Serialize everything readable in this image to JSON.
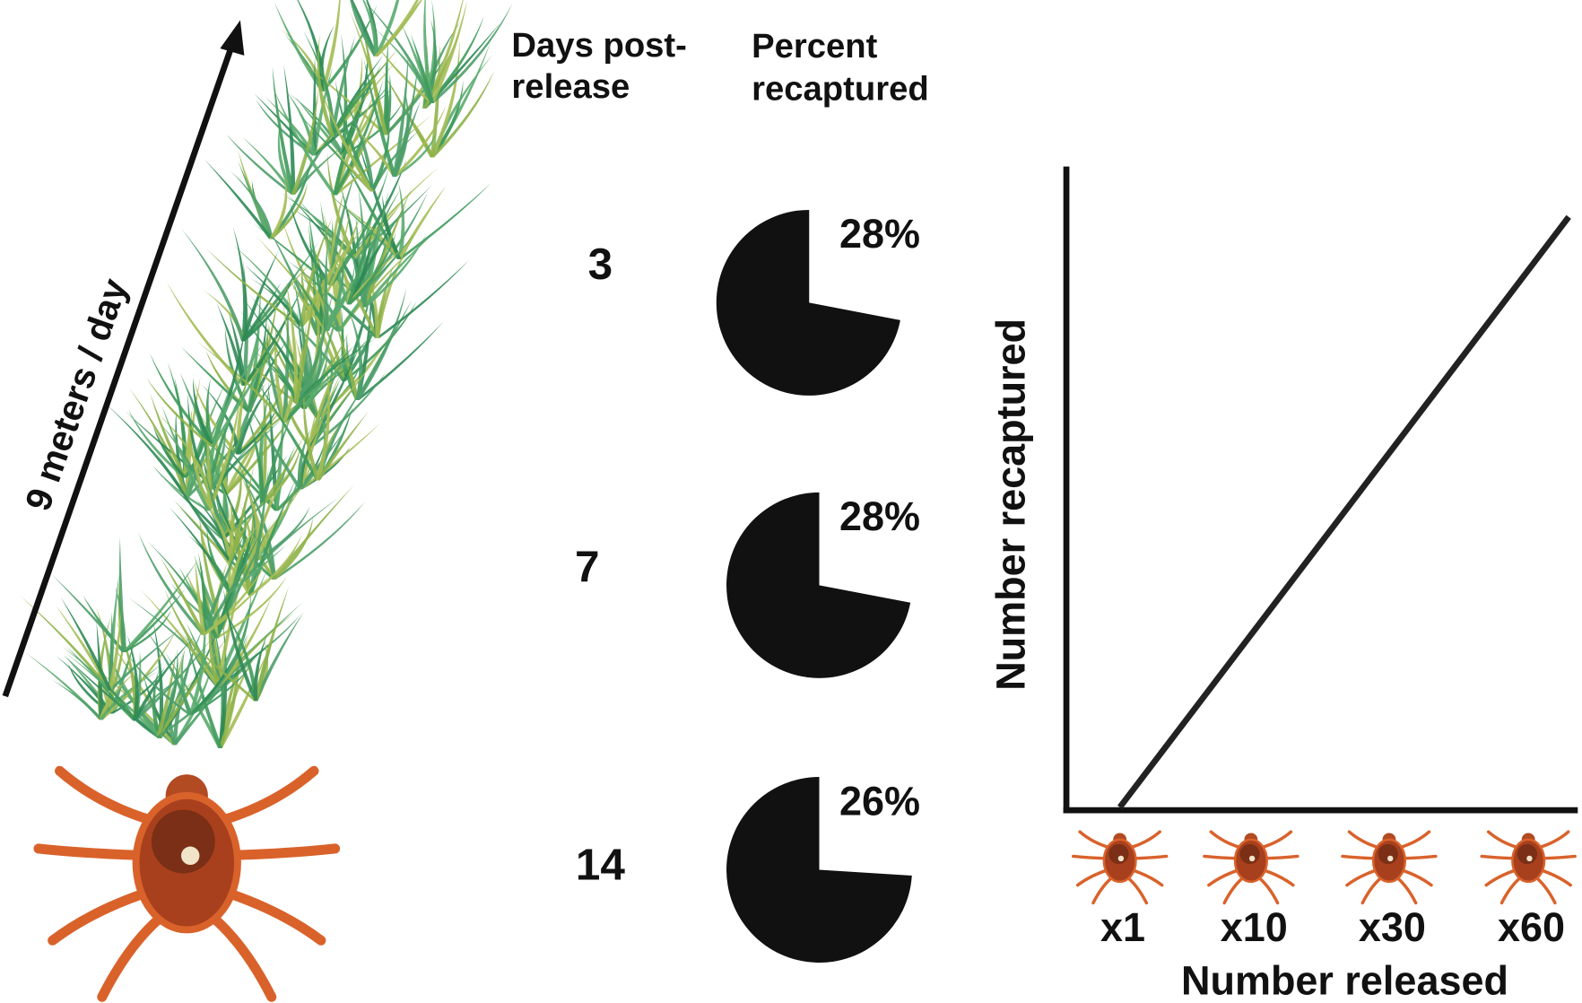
{
  "arrow_label": "9 meters / day",
  "headers": {
    "days": "Days post-release",
    "days_lines": [
      "Days post-",
      "release"
    ],
    "percent_lines": [
      "Percent",
      "recaptured"
    ]
  },
  "rows": [
    {
      "days": 3,
      "percent": 28,
      "label": "28%"
    },
    {
      "days": 7,
      "percent": 28,
      "label": "28%"
    },
    {
      "days": 14,
      "percent": 26,
      "label": "26%"
    }
  ],
  "plot": {
    "y_label": "Number recaptured",
    "x_label": "Number released",
    "categories": [
      "x1",
      "x10",
      "x30",
      "x60"
    ]
  }
}
